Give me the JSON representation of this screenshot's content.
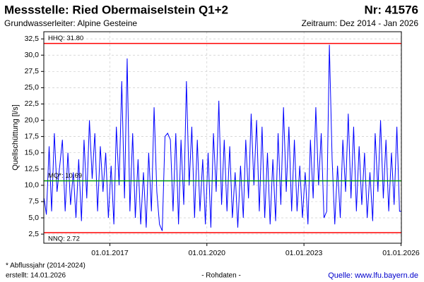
{
  "chart_data": {
    "type": "line",
    "title": "Messstelle: Ried Obermaiselstein Q1+2",
    "station_number": "Nr: 41576",
    "subtitle": "Grundwasserleiter: Alpine Gesteine",
    "period": "Zeitraum: Dez 2014 - Jan 2026",
    "y_label": "Quellschüttung [l/s]",
    "footnote": "* Abflussjahr (2014-2024)",
    "created": "erstellt:  14.01.2026",
    "data_kind": "- Rohdaten -",
    "source": "Quelle:  www.lfu.bayern.de",
    "grid": true,
    "ylim": [
      1.1,
      33.6
    ],
    "yticks": [
      {
        "value": 2.5,
        "label": "2,5"
      },
      {
        "value": 5,
        "label": "5,0"
      },
      {
        "value": 7.5,
        "label": "7,5"
      },
      {
        "value": 10,
        "label": "10,0"
      },
      {
        "value": 12.5,
        "label": "12,5"
      },
      {
        "value": 15,
        "label": "15,0"
      },
      {
        "value": 17.5,
        "label": "17,5"
      },
      {
        "value": 20,
        "label": "20,0"
      },
      {
        "value": 22.5,
        "label": "22,5"
      },
      {
        "value": 25,
        "label": "25,0"
      },
      {
        "value": 27.5,
        "label": "27,5"
      },
      {
        "value": 30,
        "label": "30,0"
      },
      {
        "value": 32.5,
        "label": "32,5"
      }
    ],
    "xlim": [
      "2014-12-17",
      "2026-01-05"
    ],
    "xticks": [
      {
        "value": "2017-01-01",
        "label": "01.01.2017"
      },
      {
        "value": "2020-01-01",
        "label": "01.01.2020"
      },
      {
        "value": "2023-01-01",
        "label": "01.01.2023"
      },
      {
        "value": "2026-01-01",
        "label": "01.01.2026"
      }
    ],
    "reference_lines": [
      {
        "label": "HHQ: 31.80",
        "value": 31.8,
        "color": "#ff0000"
      },
      {
        "label": "MQ*: 10.69",
        "value": 10.69,
        "color": "#009900"
      },
      {
        "label": "NNQ: 2.72",
        "value": 2.72,
        "color": "#ff0000"
      }
    ],
    "x": [
      "2014-12-20",
      "2015-01-15",
      "2015-02-15",
      "2015-03-15",
      "2015-04-15",
      "2015-05-15",
      "2015-06-15",
      "2015-07-15",
      "2015-08-15",
      "2015-09-15",
      "2015-10-15",
      "2015-11-15",
      "2015-12-15",
      "2016-01-15",
      "2016-02-15",
      "2016-03-15",
      "2016-04-15",
      "2016-05-15",
      "2016-06-15",
      "2016-07-15",
      "2016-08-15",
      "2016-09-15",
      "2016-10-15",
      "2016-11-15",
      "2016-12-15",
      "2017-01-15",
      "2017-02-15",
      "2017-03-15",
      "2017-04-15",
      "2017-05-15",
      "2017-06-15",
      "2017-07-15",
      "2017-08-15",
      "2017-09-15",
      "2017-10-15",
      "2017-11-15",
      "2017-12-15",
      "2018-01-15",
      "2018-02-15",
      "2018-03-15",
      "2018-04-15",
      "2018-05-15",
      "2018-06-15",
      "2018-07-15",
      "2018-08-15",
      "2018-09-15",
      "2018-10-15",
      "2018-11-15",
      "2018-12-15",
      "2019-01-15",
      "2019-02-15",
      "2019-03-15",
      "2019-04-15",
      "2019-05-15",
      "2019-06-15",
      "2019-07-15",
      "2019-08-15",
      "2019-09-15",
      "2019-10-15",
      "2019-11-15",
      "2019-12-15",
      "2020-01-15",
      "2020-02-15",
      "2020-03-15",
      "2020-04-15",
      "2020-05-15",
      "2020-06-15",
      "2020-07-15",
      "2020-08-15",
      "2020-09-15",
      "2020-10-15",
      "2020-11-15",
      "2020-12-15",
      "2021-01-15",
      "2021-02-15",
      "2021-03-15",
      "2021-04-15",
      "2021-05-15",
      "2021-06-15",
      "2021-07-15",
      "2021-08-15",
      "2021-09-15",
      "2021-10-15",
      "2021-11-15",
      "2021-12-15",
      "2022-01-15",
      "2022-02-15",
      "2022-03-15",
      "2022-04-15",
      "2022-05-15",
      "2022-06-15",
      "2022-07-15",
      "2022-08-15",
      "2022-09-15",
      "2022-10-15",
      "2022-11-15",
      "2022-12-15",
      "2023-01-15",
      "2023-02-15",
      "2023-03-15",
      "2023-04-15",
      "2023-05-15",
      "2023-06-15",
      "2023-07-15",
      "2023-08-15",
      "2023-09-15",
      "2023-10-15",
      "2023-11-15",
      "2023-12-15",
      "2024-01-15",
      "2024-02-15",
      "2024-03-15",
      "2024-04-15",
      "2024-05-15",
      "2024-06-15",
      "2024-07-15",
      "2024-08-15",
      "2024-09-15",
      "2024-10-15",
      "2024-11-15",
      "2024-12-15",
      "2025-01-15",
      "2025-02-15",
      "2025-03-15",
      "2025-04-15",
      "2025-05-15",
      "2025-06-15",
      "2025-07-15",
      "2025-08-15",
      "2025-09-15",
      "2025-10-15",
      "2025-11-15",
      "2025-12-15",
      "2026-01-03"
    ],
    "series": [
      {
        "color": "#0000ff",
        "values": [
          8,
          5.5,
          16,
          6,
          18,
          9,
          13,
          17,
          6,
          15,
          7,
          12,
          5,
          14,
          4.5,
          17,
          8,
          20,
          11,
          18,
          6,
          16,
          9,
          15,
          5,
          13,
          4,
          19,
          10,
          26,
          8,
          29.5,
          6,
          18,
          5,
          14,
          4,
          12,
          3.5,
          15,
          6,
          22,
          9,
          4,
          3,
          17.5,
          18,
          17,
          6,
          18,
          4,
          17,
          7,
          26,
          10,
          19,
          5,
          17,
          6,
          14,
          4,
          15,
          3.5,
          18,
          9,
          23,
          7,
          17,
          6,
          16,
          5,
          12,
          3.5,
          13,
          5,
          17,
          8,
          21,
          10,
          20,
          6,
          19,
          5,
          15,
          4,
          14,
          4.5,
          18,
          7,
          22,
          9,
          19,
          6,
          17,
          6,
          13,
          5,
          12,
          4,
          17,
          8,
          22,
          10,
          18,
          5,
          6,
          31.6,
          14,
          4,
          13,
          5,
          17,
          9,
          21,
          8,
          19,
          6,
          16,
          7,
          15,
          5,
          12,
          4.5,
          18,
          9,
          20,
          8,
          17,
          6,
          15,
          7,
          19,
          6,
          6
        ]
      }
    ]
  }
}
